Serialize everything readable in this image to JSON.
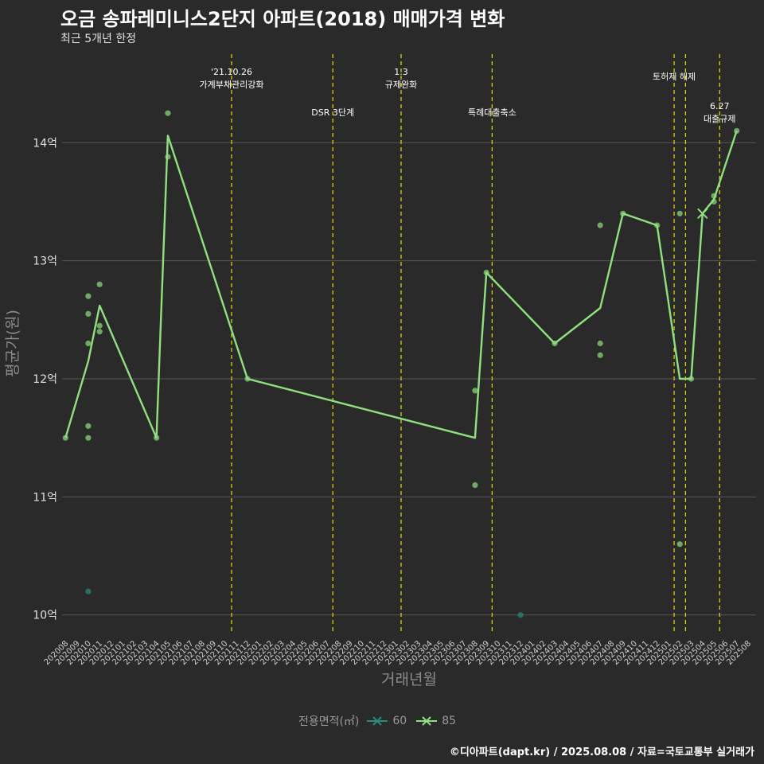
{
  "title": "오금 송파레미니스2단지 아파트(2018) 매매가격 변화",
  "subtitle": "최근 5개년 한정",
  "caption": "©디아파트(dapt.kr) / 2025.08.08 / 자료=국토교통부 실거래가",
  "colors": {
    "background": "#2b2a2b",
    "series_60": "#2a8a7e",
    "series_85": "#8fe07e",
    "vline": "#e0e000",
    "grid": "#555555"
  },
  "chart_data": {
    "type": "line",
    "xlabel": "거래년월",
    "ylabel": "평균가(원)",
    "x_categories": [
      "202008",
      "202009",
      "202010",
      "202011",
      "202012",
      "202101",
      "202102",
      "202103",
      "202104",
      "202105",
      "202106",
      "202107",
      "202108",
      "202109",
      "202110",
      "202111",
      "202112",
      "202201",
      "202202",
      "202203",
      "202204",
      "202205",
      "202206",
      "202207",
      "202208",
      "202209",
      "202210",
      "202211",
      "202212",
      "202301",
      "202302",
      "202303",
      "202304",
      "202305",
      "202306",
      "202307",
      "202308",
      "202309",
      "202310",
      "202311",
      "202312",
      "202401",
      "202402",
      "202403",
      "202404",
      "202405",
      "202406",
      "202407",
      "202408",
      "202409",
      "202410",
      "202411",
      "202412",
      "202501",
      "202502",
      "202503",
      "202504",
      "202505",
      "202506",
      "202507",
      "202508"
    ],
    "y_ticks": [
      {
        "value": 10,
        "label": "10억"
      },
      {
        "value": 11,
        "label": "11억"
      },
      {
        "value": 12,
        "label": "12억"
      },
      {
        "value": 13,
        "label": "13억"
      },
      {
        "value": 14,
        "label": "14억"
      }
    ],
    "ylim": [
      9.85,
      14.75
    ],
    "grid": true,
    "legend_title": "전용면적(㎡)",
    "legend_position": "bottom",
    "series": [
      {
        "name": "60",
        "color": "#2a8a7e",
        "line": [],
        "points": [
          {
            "x": "202010",
            "y": 10.2
          },
          {
            "x": "202312",
            "y": 10.0
          }
        ],
        "cross_markers": []
      },
      {
        "name": "85",
        "color": "#8fe07e",
        "line": [
          {
            "x": "202008",
            "y": 11.5
          },
          {
            "x": "202010",
            "y": 12.15
          },
          {
            "x": "202011",
            "y": 12.62
          },
          {
            "x": "202104",
            "y": 11.5
          },
          {
            "x": "202105",
            "y": 14.06
          },
          {
            "x": "202112",
            "y": 12.0
          },
          {
            "x": "202308",
            "y": 11.5
          },
          {
            "x": "202309",
            "y": 12.9
          },
          {
            "x": "202403",
            "y": 12.3
          },
          {
            "x": "202407",
            "y": 12.6
          },
          {
            "x": "202409",
            "y": 13.4
          },
          {
            "x": "202412",
            "y": 13.3
          },
          {
            "x": "202502",
            "y": 12.0
          },
          {
            "x": "202503",
            "y": 12.0
          },
          {
            "x": "202504",
            "y": 13.4
          },
          {
            "x": "202505",
            "y": 13.52
          },
          {
            "x": "202507",
            "y": 14.1
          }
        ],
        "points": [
          {
            "x": "202008",
            "y": 11.5
          },
          {
            "x": "202010",
            "y": 12.7
          },
          {
            "x": "202010",
            "y": 12.55
          },
          {
            "x": "202010",
            "y": 12.3
          },
          {
            "x": "202010",
            "y": 11.6
          },
          {
            "x": "202010",
            "y": 11.5
          },
          {
            "x": "202011",
            "y": 12.8
          },
          {
            "x": "202011",
            "y": 12.45
          },
          {
            "x": "202011",
            "y": 12.4
          },
          {
            "x": "202104",
            "y": 11.5
          },
          {
            "x": "202105",
            "y": 14.25
          },
          {
            "x": "202105",
            "y": 13.88
          },
          {
            "x": "202112",
            "y": 12.0
          },
          {
            "x": "202308",
            "y": 11.9
          },
          {
            "x": "202308",
            "y": 11.1
          },
          {
            "x": "202309",
            "y": 12.9
          },
          {
            "x": "202403",
            "y": 12.3
          },
          {
            "x": "202407",
            "y": 13.3
          },
          {
            "x": "202407",
            "y": 12.3
          },
          {
            "x": "202407",
            "y": 12.2
          },
          {
            "x": "202409",
            "y": 13.4
          },
          {
            "x": "202412",
            "y": 13.3
          },
          {
            "x": "202502",
            "y": 13.4
          },
          {
            "x": "202502",
            "y": 10.6
          },
          {
            "x": "202503",
            "y": 12.0
          },
          {
            "x": "202505",
            "y": 13.55
          },
          {
            "x": "202505",
            "y": 13.5
          },
          {
            "x": "202507",
            "y": 14.1
          }
        ],
        "cross_markers": [
          {
            "x": "202504",
            "y": 13.4
          }
        ]
      }
    ],
    "events": [
      {
        "x": 14.6,
        "lines": [
          "'21.10.26",
          "가계부채관리강화"
        ],
        "level": 1
      },
      {
        "x": 23.5,
        "lines": [
          "DSR 3단계"
        ],
        "level": 2
      },
      {
        "x": 29.5,
        "lines": [
          "1.3",
          "규제완화"
        ],
        "level": 1
      },
      {
        "x": 37.5,
        "lines": [
          "특례대출축소"
        ],
        "level": 2
      },
      {
        "x": 53.5,
        "lines": [
          "토허제 해제"
        ],
        "level": 0
      },
      {
        "x": 54.5,
        "lines": [],
        "level": 0
      },
      {
        "x": 57.5,
        "lines": [
          "6.27",
          "대출규제"
        ],
        "level": 3
      }
    ]
  }
}
